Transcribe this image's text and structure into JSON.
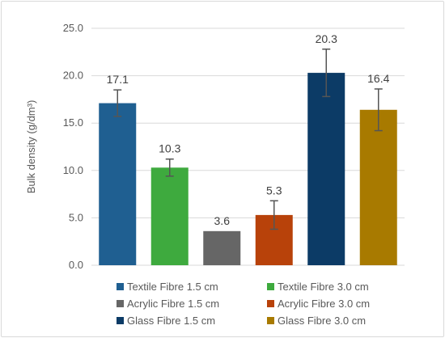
{
  "chart_data": {
    "type": "bar",
    "ylabel": "Bulk density (g/dm³)",
    "xlabel": "",
    "ylim": [
      0,
      25
    ],
    "yticks": [
      0,
      5,
      10,
      15,
      20,
      25
    ],
    "ytick_labels": [
      "0.0",
      "5.0",
      "10.0",
      "15.0",
      "20.0",
      "25.0"
    ],
    "grid": "horizontal",
    "legend_position": "bottom",
    "series": [
      {
        "name": "Textile Fibre 1.5 cm",
        "value": 17.1,
        "label": "17.1",
        "error": 1.4,
        "color": "#1f5f91"
      },
      {
        "name": "Textile Fibre 3.0 cm",
        "value": 10.3,
        "label": "10.3",
        "error": 0.9,
        "color": "#3eaa3e"
      },
      {
        "name": "Acrylic Fibre 1.5 cm",
        "value": 3.6,
        "label": "3.6",
        "error": 0,
        "color": "#666666"
      },
      {
        "name": "Acrylic Fibre 3.0 cm",
        "value": 5.3,
        "label": "5.3",
        "error": 1.5,
        "color": "#b8420a"
      },
      {
        "name": "Glass Fibre 1.5 cm",
        "value": 20.3,
        "label": "20.3",
        "error": 2.5,
        "color": "#0c3b66"
      },
      {
        "name": "Glass Fibre 3.0 cm",
        "value": 16.4,
        "label": "16.4",
        "error": 2.2,
        "color": "#a87a00"
      }
    ]
  }
}
